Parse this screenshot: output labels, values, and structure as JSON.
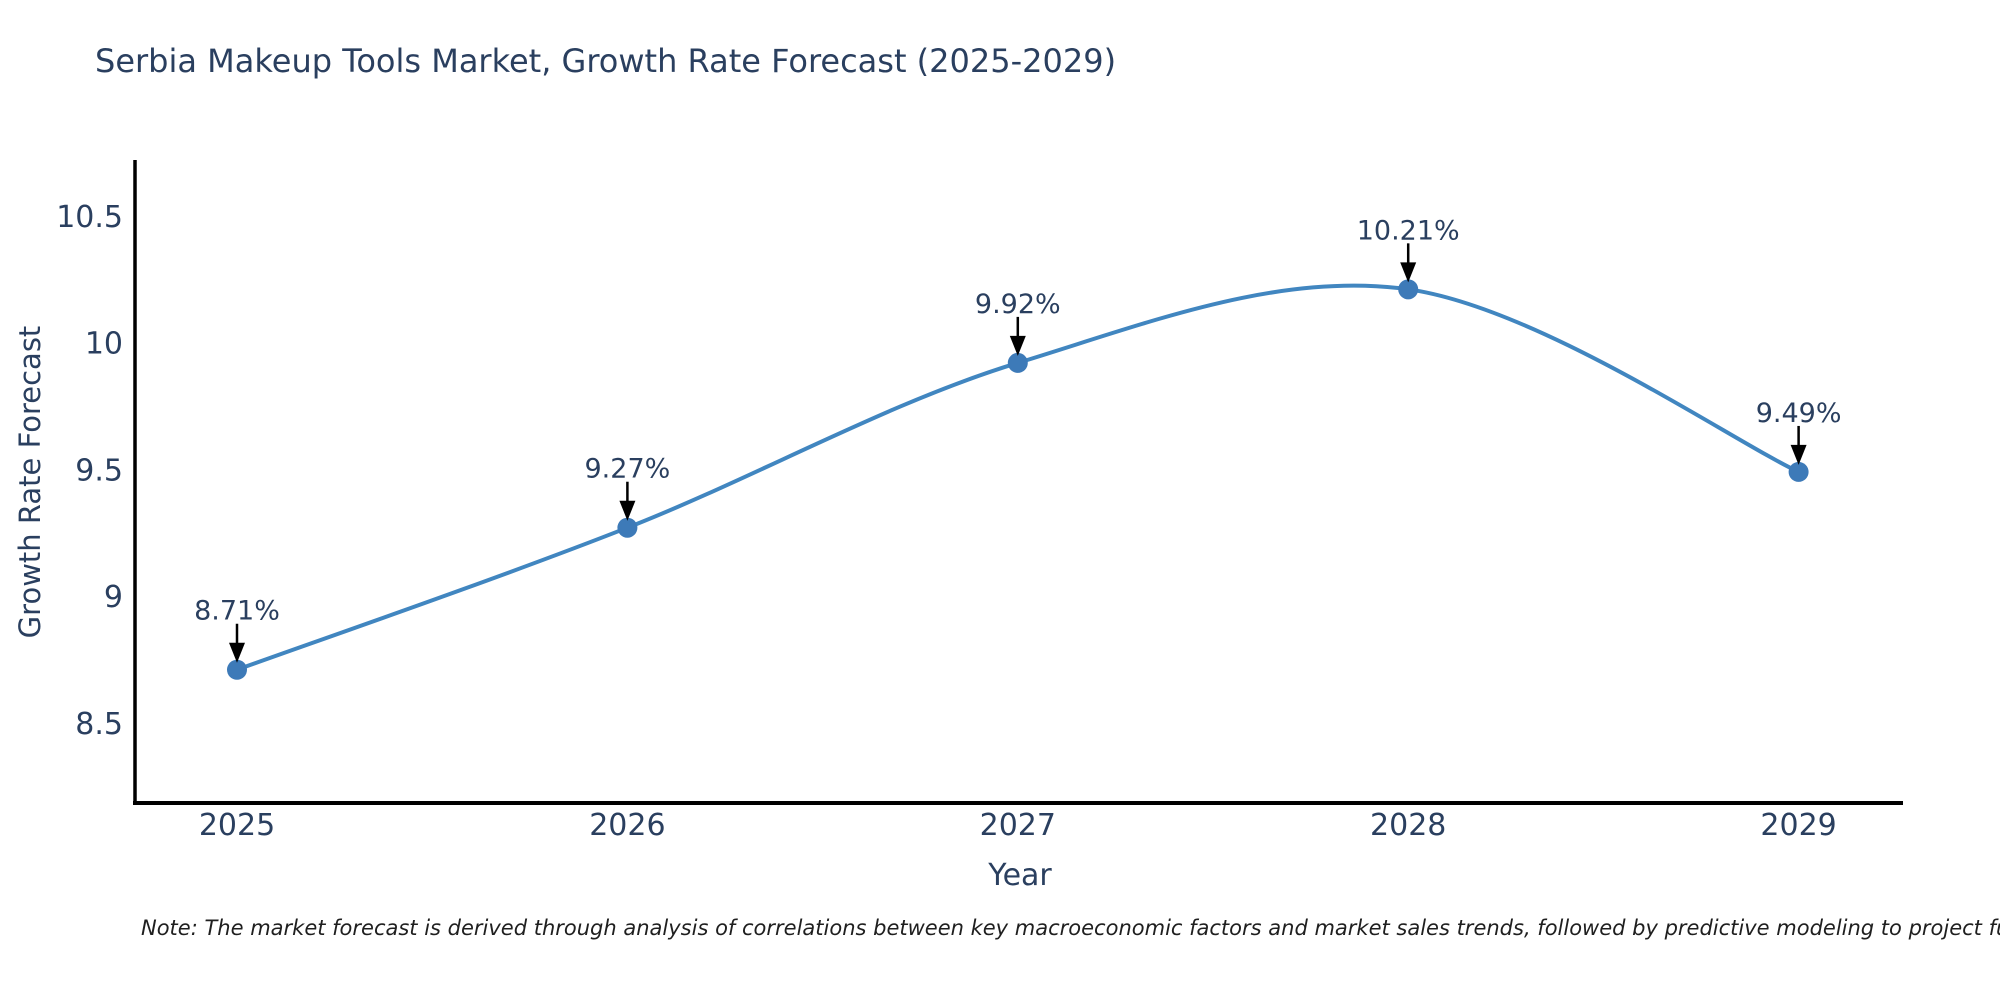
{
  "chart_data": {
    "type": "line",
    "title": "Serbia Makeup Tools Market, Growth Rate Forecast (2025-2029)",
    "xlabel": "Year",
    "ylabel": "Growth Rate Forecast",
    "x": [
      "2025",
      "2026",
      "2027",
      "2028",
      "2029"
    ],
    "values": [
      8.71,
      9.27,
      9.92,
      10.21,
      9.49
    ],
    "point_labels": [
      "8.71%",
      "9.27%",
      "9.92%",
      "10.21%",
      "9.49%"
    ],
    "yticks": [
      8.5,
      9,
      9.5,
      10,
      10.5
    ],
    "ylim": [
      8.19,
      10.72
    ],
    "line_shape": "spline",
    "grid": false,
    "legend": false,
    "colors": {
      "line": "#4186c0",
      "marker": "#3d7ab8",
      "axis": "#000000",
      "text": "#2a3f5f",
      "annotation_arrow": "#000000"
    }
  },
  "note": "Note: The market forecast is derived through analysis of correlations between key macroeconomic factors and market sales trends, followed by predictive modeling to project future sales"
}
